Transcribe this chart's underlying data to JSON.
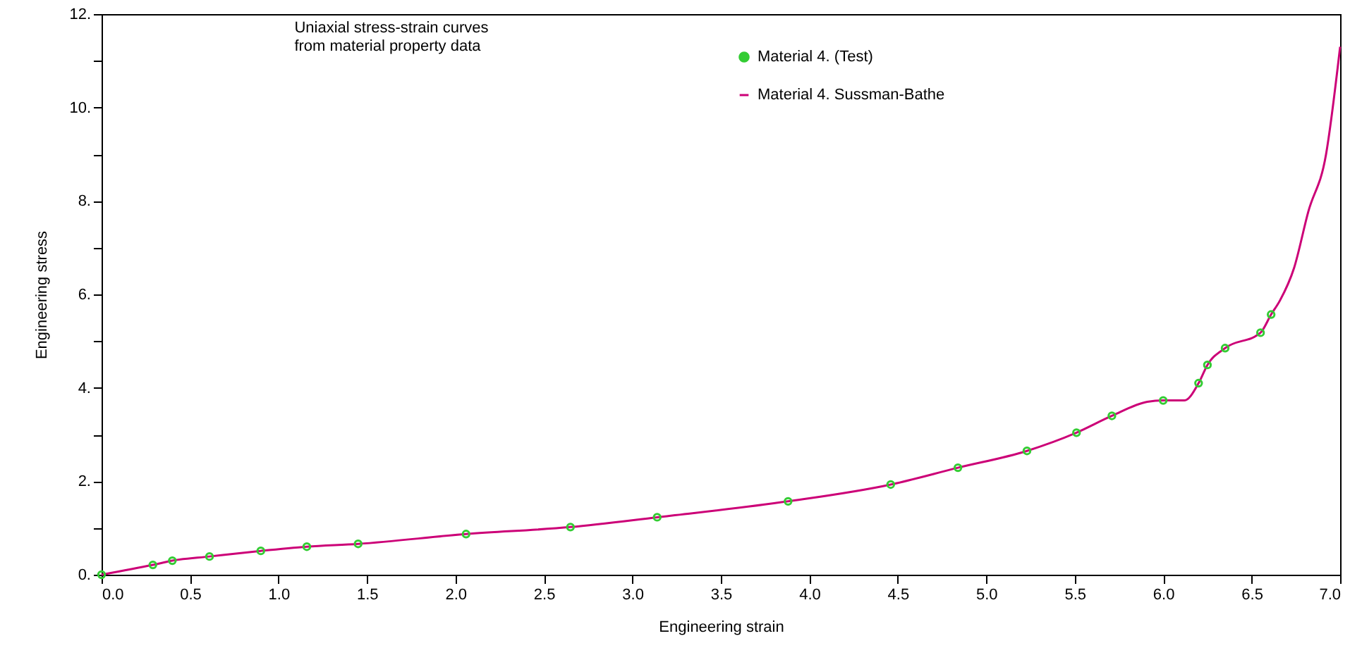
{
  "chart_data": {
    "type": "line",
    "title": "Uniaxial stress-strain curves from material property data",
    "xlabel": "Engineering strain",
    "ylabel": "Engineering stress",
    "series": [
      {
        "name": "Material 4. (Test)",
        "type": "scatter",
        "color": "#33cc33",
        "marker": "circle",
        "x": [
          0,
          0.29,
          0.4,
          0.61,
          0.9,
          1.16,
          1.45,
          2.06,
          2.65,
          3.14,
          3.88,
          4.46,
          4.84,
          5.23,
          5.51,
          5.71,
          6.0,
          6.2,
          6.25,
          6.35,
          6.55,
          6.61
        ],
        "values": [
          0,
          0.21,
          0.3,
          0.39,
          0.51,
          0.6,
          0.66,
          0.87,
          1.02,
          1.23,
          1.57,
          1.93,
          2.29,
          2.65,
          3.04,
          3.4,
          3.73,
          4.1,
          4.49,
          4.85,
          5.18,
          5.57
        ]
      },
      {
        "name": "Material 4. Sussman-Bathe",
        "type": "line",
        "color": "#cc0077",
        "x": [
          0,
          0.29,
          0.4,
          0.61,
          0.9,
          1.16,
          1.45,
          2.06,
          2.65,
          3.14,
          3.88,
          4.46,
          4.84,
          5.23,
          5.51,
          5.71,
          5.91,
          6.0,
          6.12,
          6.2,
          6.25,
          6.35,
          6.55,
          6.61,
          6.66,
          6.74,
          6.82,
          6.92,
          7.0
        ],
        "values": [
          0,
          0.21,
          0.3,
          0.39,
          0.51,
          0.6,
          0.66,
          0.87,
          1.02,
          1.23,
          1.57,
          1.93,
          2.29,
          2.65,
          3.04,
          3.4,
          3.7,
          3.73,
          3.73,
          4.1,
          4.49,
          4.85,
          5.18,
          5.57,
          5.87,
          6.57,
          7.77,
          8.99,
          11.3
        ]
      }
    ],
    "xlim": [
      0,
      7
    ],
    "xticks": [
      {
        "value": 0,
        "label": "0.0"
      },
      0.5,
      {
        "value": 1,
        "label": "1.0"
      },
      1.5,
      {
        "value": 2,
        "label": "2.0"
      },
      2.5,
      {
        "value": 3,
        "label": "3.0"
      },
      3.5,
      {
        "value": 4,
        "label": "4.0"
      },
      4.5,
      {
        "value": 5,
        "label": "5.0"
      },
      5.5,
      {
        "value": 6,
        "label": "6.0"
      },
      6.5,
      {
        "value": 7,
        "label": "7.0"
      }
    ],
    "ylim": [
      0,
      12
    ],
    "yticks": [
      {
        "value": 0,
        "label": "0."
      },
      {
        "value": 1,
        "label": null
      },
      {
        "value": 2,
        "label": "2."
      },
      {
        "value": 3,
        "label": null
      },
      {
        "value": 4,
        "label": "4."
      },
      {
        "value": 5,
        "label": null
      },
      {
        "value": 6,
        "label": "6."
      },
      {
        "value": 7,
        "label": null
      },
      {
        "value": 8,
        "label": "8."
      },
      {
        "value": 9,
        "label": null
      },
      {
        "value": 10,
        "label": "10."
      },
      {
        "value": 11,
        "label": null
      },
      {
        "value": 12,
        "label": "12."
      }
    ],
    "grid": false,
    "legend": "top right"
  }
}
